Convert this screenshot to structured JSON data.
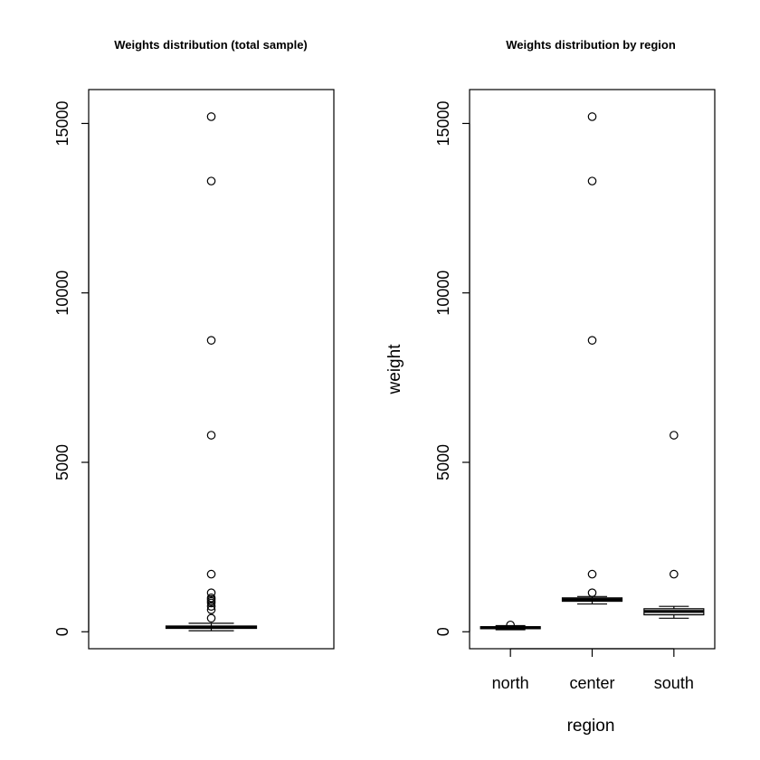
{
  "chart_data": [
    {
      "type": "box",
      "title": "Weights distribution (total sample)",
      "xlabel": "",
      "ylabel": "",
      "ylim": [
        -500,
        16000
      ],
      "yticks": [
        0,
        5000,
        10000,
        15000
      ],
      "grid": false,
      "categories": [
        ""
      ],
      "boxes": [
        {
          "category": "",
          "min": 30,
          "q1": 100,
          "median": 130,
          "q3": 170,
          "max": 250,
          "outliers": [
            15200,
            13300,
            8600,
            5800,
            1700,
            1150,
            1000,
            950,
            900,
            850,
            750,
            650,
            400
          ]
        }
      ]
    },
    {
      "type": "box",
      "title": "Weights distribution by region",
      "xlabel": "region",
      "ylabel": "weight",
      "ylim": [
        -500,
        16000
      ],
      "yticks": [
        0,
        5000,
        10000,
        15000
      ],
      "grid": false,
      "categories": [
        "north",
        "center",
        "south"
      ],
      "boxes": [
        {
          "category": "north",
          "min": 60,
          "q1": 90,
          "median": 120,
          "q3": 150,
          "max": 180,
          "outliers": [
            200
          ]
        },
        {
          "category": "center",
          "min": 820,
          "q1": 900,
          "median": 950,
          "q3": 1000,
          "max": 1040,
          "outliers": [
            15200,
            13300,
            8600,
            1700,
            1150
          ]
        },
        {
          "category": "south",
          "min": 400,
          "q1": 500,
          "median": 600,
          "q3": 680,
          "max": 750,
          "outliers": [
            5800,
            1700
          ]
        }
      ]
    }
  ]
}
